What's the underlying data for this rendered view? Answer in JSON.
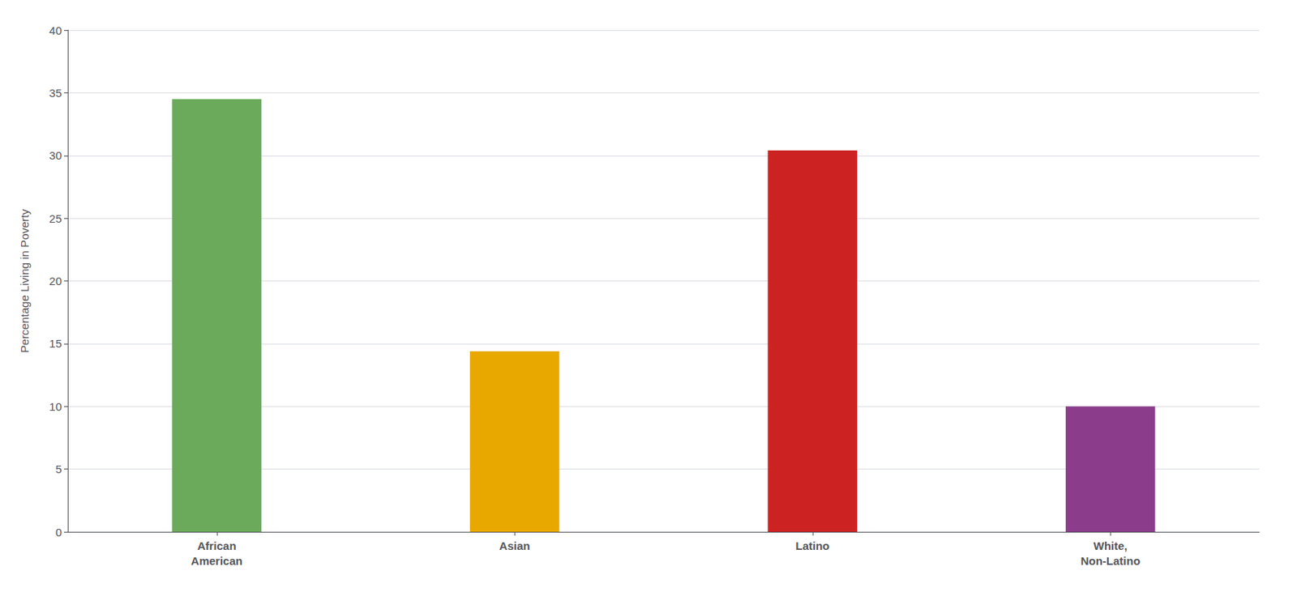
{
  "chart_data": {
    "type": "bar",
    "categories": [
      "African\nAmerican",
      "Asian",
      "Latino",
      "White,\nNon-Latino"
    ],
    "values": [
      34.5,
      14.4,
      30.4,
      10.0
    ],
    "colors": [
      "#6aaa5a",
      "#e8a800",
      "#cc2222",
      "#8b3d8b"
    ],
    "ylabel": "Percentage Living in Poverty",
    "ylim": [
      0,
      40
    ],
    "yticks": [
      0,
      5,
      10,
      15,
      20,
      25,
      30,
      35,
      40
    ],
    "grid": true
  }
}
